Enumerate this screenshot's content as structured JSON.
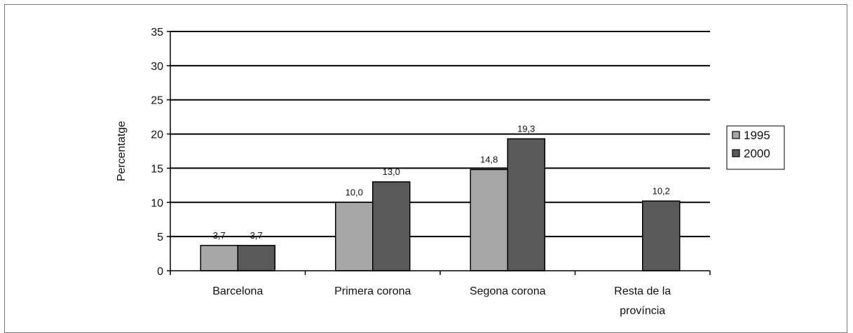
{
  "chart_data": {
    "type": "bar",
    "categories": [
      "Barcelona",
      "Primera corona",
      "Segona corona",
      "Resta de la provincia"
    ],
    "category_lines": [
      [
        "Barcelona"
      ],
      [
        "Primera corona"
      ],
      [
        "Segona corona"
      ],
      [
        "Resta de la",
        "província"
      ]
    ],
    "series": [
      {
        "name": "1995",
        "values": [
          3.7,
          10.0,
          14.8,
          null
        ],
        "labels": [
          "3,7",
          "10,0",
          "14,8",
          ""
        ],
        "color": "#a6a6a6"
      },
      {
        "name": "2000",
        "values": [
          3.7,
          13.0,
          19.3,
          10.2
        ],
        "labels": [
          "3,7",
          "13,0",
          "19,3",
          "10,2"
        ],
        "color": "#595959"
      }
    ],
    "ylabel": "Percentatge",
    "ylim": [
      0,
      35
    ],
    "yticks": [
      0,
      5,
      10,
      15,
      20,
      25,
      30,
      35
    ],
    "grid": true,
    "legend": "right"
  }
}
